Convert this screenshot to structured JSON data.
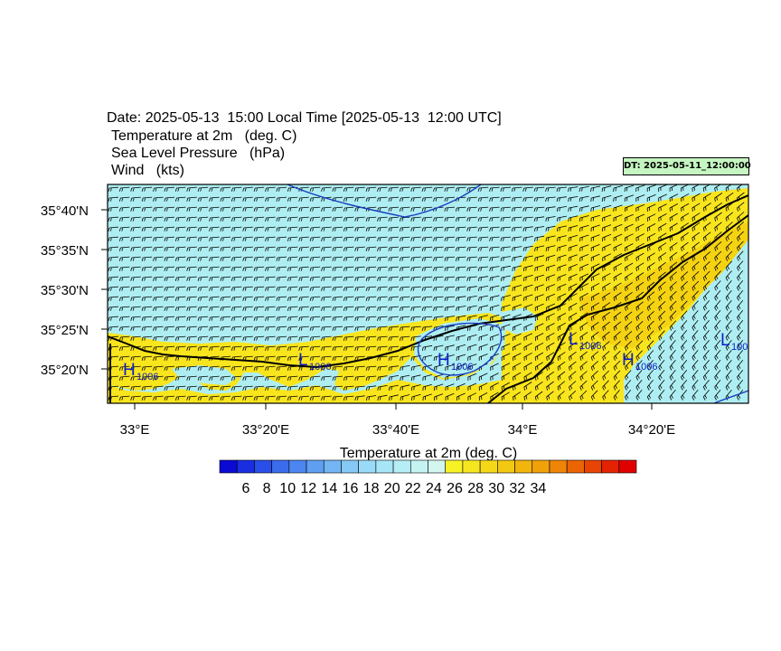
{
  "header": {
    "date_line": "Date: 2025-05-13  15:00 Local Time [2025-05-13  12:00 UTC]",
    "variables": [
      "Temperature at 2m   (deg. C)",
      "Sea Level Pressure   (hPa)",
      "Wind   (kts)"
    ],
    "dt_badge": "DT: 2025-05-11_12:00:00"
  },
  "map": {
    "lon_labels": [
      "33°E",
      "33°20'E",
      "33°40'E",
      "34°E",
      "34°20'E"
    ],
    "lat_labels": [
      "35°40'N",
      "35°35'N",
      "35°30'N",
      "35°25'N",
      "35°20'N"
    ],
    "pressure_centers": [
      {
        "type": "H",
        "value": "1006"
      },
      {
        "type": "L",
        "value": "1006"
      },
      {
        "type": "H",
        "value": "1006"
      },
      {
        "type": "L",
        "value": "1006"
      },
      {
        "type": "H",
        "value": "1006"
      },
      {
        "type": "L",
        "value": "100"
      }
    ],
    "colors": {
      "sea_cool": "#aeeef2",
      "land_warm": "#f9e51d",
      "land_warm_2": "#f5d312",
      "isobar": "#1c3fbf",
      "coast": "#000000"
    }
  },
  "colorbar": {
    "title": "Temperature at 2m  (deg. C)",
    "labels": [
      "6",
      "8",
      "10",
      "12",
      "14",
      "16",
      "18",
      "20",
      "22",
      "24",
      "26",
      "28",
      "30",
      "32",
      "34"
    ],
    "colors": [
      "#0a0ad2",
      "#1a2ee0",
      "#2a4ee8",
      "#3b6cec",
      "#4d86f0",
      "#5f9ff2",
      "#74b5f4",
      "#86c8f6",
      "#99dbf8",
      "#a6e6f6",
      "#b5eef4",
      "#c4f3f2",
      "#d3f6f0",
      "#f7f226",
      "#f6e620",
      "#f5d818",
      "#f3c812",
      "#f2b50d",
      "#f1a10a",
      "#ef8507",
      "#ec6505",
      "#e84403",
      "#e42302",
      "#e00000"
    ]
  }
}
